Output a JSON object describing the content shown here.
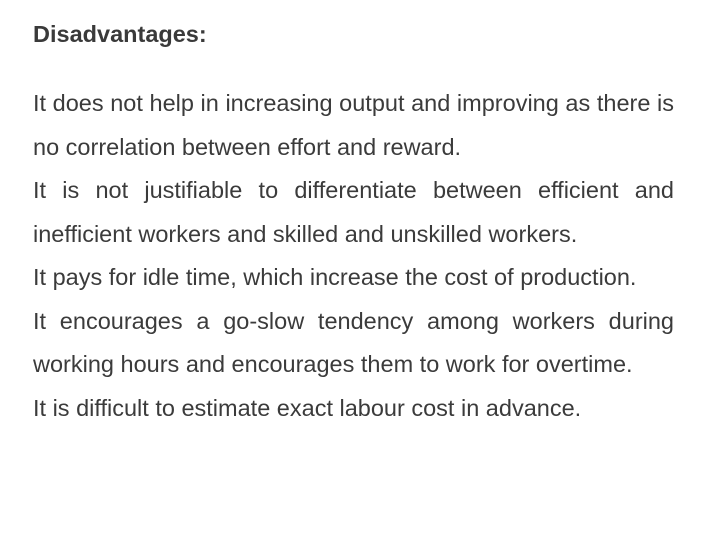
{
  "heading": "Disadvantages:",
  "points": [
    "It does not help in increasing output and improving as there is no correlation between effort and reward.",
    "It is not justifiable to differentiate between efficient and inefficient workers and skilled and unskilled workers.",
    "It pays for idle time, which increase the cost of production.",
    "It encourages a go-slow tendency among workers during working hours and encourages them to work for overtime.",
    "It is difficult to estimate exact labour cost in advance."
  ]
}
